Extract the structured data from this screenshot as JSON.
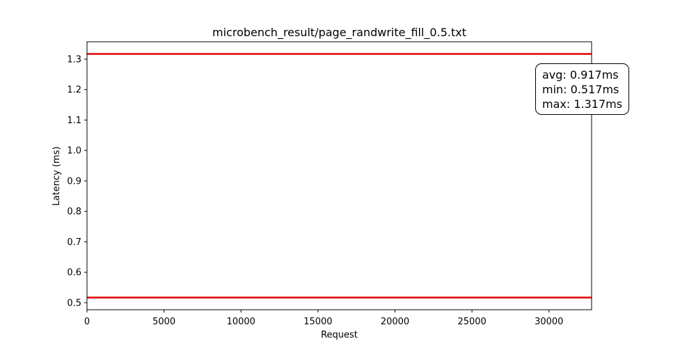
{
  "chart_data": {
    "type": "line",
    "title": "microbench_result/page_randwrite_fill_0.5.txt",
    "xlabel": "Request",
    "ylabel": "Latency (ms)",
    "xlim": [
      0,
      32768
    ],
    "ylim": [
      0.477,
      1.357
    ],
    "x_ticks": [
      0,
      5000,
      10000,
      15000,
      20000,
      25000,
      30000
    ],
    "y_ticks": [
      0.5,
      0.6,
      0.7,
      0.8,
      0.9,
      1.0,
      1.1,
      1.2,
      1.3
    ],
    "y_tick_labels": [
      "0.5",
      "0.6",
      "0.7",
      "0.8",
      "0.9",
      "1.0",
      "1.1",
      "1.2",
      "1.3"
    ],
    "grid": false,
    "legend": "none",
    "series": [
      {
        "color": "#e00000",
        "x": [
          0,
          32768
        ],
        "values": [
          1.317,
          1.317
        ]
      },
      {
        "color": "#e00000",
        "x": [
          0,
          32768
        ],
        "values": [
          0.517,
          0.517
        ]
      }
    ],
    "annotation": {
      "placement": "top-right",
      "lines": [
        "avg: 0.917ms",
        "min: 0.517ms",
        "max: 1.317ms"
      ]
    }
  }
}
